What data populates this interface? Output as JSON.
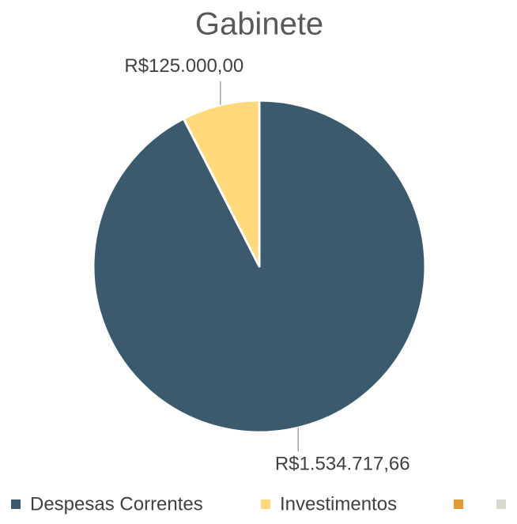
{
  "chart_data": {
    "type": "pie",
    "title": "Gabinete",
    "categories": [
      "Despesas Correntes",
      "Investimentos",
      null,
      null
    ],
    "values": [
      1534717.66,
      125000,
      0,
      0
    ],
    "value_labels": [
      "R$1.534.717,66",
      "R$125.000,00",
      null,
      null
    ],
    "colors": [
      "#3b5a6e",
      "#ffd97a",
      "#e39a31",
      "#d9d9cf"
    ],
    "legend": "bottom"
  }
}
